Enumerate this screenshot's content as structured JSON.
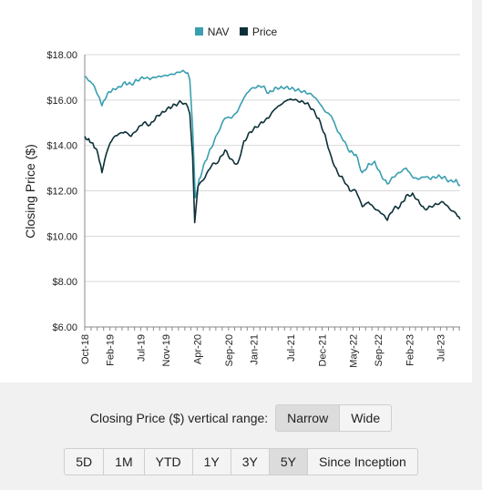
{
  "legend": {
    "nav": {
      "label": "NAV",
      "color": "#3a9fb0"
    },
    "price": {
      "label": "Price",
      "color": "#0d3038"
    }
  },
  "range_control": {
    "label": "Closing Price ($) vertical range:",
    "options": [
      "Narrow",
      "Wide"
    ],
    "selected": "Narrow"
  },
  "period_buttons": {
    "options": [
      "5D",
      "1M",
      "YTD",
      "1Y",
      "3Y",
      "5Y",
      "Since Inception"
    ],
    "selected": "5Y"
  },
  "chart_data": {
    "type": "line",
    "ylabel": "Closing Price ($)",
    "ylim": [
      6,
      18
    ],
    "yticks": [
      "$6.00",
      "$8.00",
      "$10.00",
      "$12.00",
      "$14.00",
      "$16.00",
      "$18.00"
    ],
    "xticks": [
      "Oct-18",
      "Feb-19",
      "Jul-19",
      "Nov-19",
      "Apr-20",
      "Sep-20",
      "Jan-21",
      "Jul-21",
      "Dec-21",
      "May-22",
      "Sep-22",
      "Feb-23",
      "Jul-23"
    ],
    "grid": true,
    "legend_position": "top",
    "series": [
      {
        "name": "NAV",
        "color": "#3a9fb0",
        "points": [
          [
            "2018-10-01",
            17.05
          ],
          [
            "2018-10-20",
            16.85
          ],
          [
            "2018-11-10",
            16.7
          ],
          [
            "2018-12-05",
            16.2
          ],
          [
            "2018-12-24",
            15.75
          ],
          [
            "2019-01-20",
            16.3
          ],
          [
            "2019-02-15",
            16.5
          ],
          [
            "2019-03-15",
            16.6
          ],
          [
            "2019-04-15",
            16.8
          ],
          [
            "2019-05-15",
            16.7
          ],
          [
            "2019-06-15",
            16.85
          ],
          [
            "2019-07-15",
            16.95
          ],
          [
            "2019-08-15",
            16.9
          ],
          [
            "2019-09-15",
            17.0
          ],
          [
            "2019-10-15",
            17.05
          ],
          [
            "2019-11-15",
            17.1
          ],
          [
            "2019-12-15",
            17.15
          ],
          [
            "2020-01-15",
            17.25
          ],
          [
            "2020-02-15",
            17.2
          ],
          [
            "2020-02-25",
            16.9
          ],
          [
            "2020-03-10",
            14.8
          ],
          [
            "2020-03-23",
            11.7
          ],
          [
            "2020-04-10",
            12.5
          ],
          [
            "2020-05-10",
            13.3
          ],
          [
            "2020-06-10",
            13.9
          ],
          [
            "2020-07-15",
            14.6
          ],
          [
            "2020-08-15",
            15.2
          ],
          [
            "2020-09-15",
            15.2
          ],
          [
            "2020-10-15",
            15.5
          ],
          [
            "2020-11-15",
            16.1
          ],
          [
            "2020-12-15",
            16.45
          ],
          [
            "2021-01-15",
            16.55
          ],
          [
            "2021-02-15",
            16.6
          ],
          [
            "2021-03-15",
            16.3
          ],
          [
            "2021-04-15",
            16.55
          ],
          [
            "2021-05-15",
            16.6
          ],
          [
            "2021-06-15",
            16.6
          ],
          [
            "2021-07-15",
            16.5
          ],
          [
            "2021-08-15",
            16.4
          ],
          [
            "2021-09-15",
            16.3
          ],
          [
            "2021-10-15",
            16.2
          ],
          [
            "2021-11-15",
            15.9
          ],
          [
            "2021-12-15",
            15.5
          ],
          [
            "2022-01-15",
            15.3
          ],
          [
            "2022-02-15",
            14.6
          ],
          [
            "2022-03-15",
            14.2
          ],
          [
            "2022-04-15",
            13.7
          ],
          [
            "2022-05-15",
            13.6
          ],
          [
            "2022-06-15",
            12.8
          ],
          [
            "2022-07-15",
            13.2
          ],
          [
            "2022-08-15",
            13.3
          ],
          [
            "2022-09-15",
            12.7
          ],
          [
            "2022-10-15",
            12.3
          ],
          [
            "2022-11-15",
            12.6
          ],
          [
            "2022-12-15",
            12.8
          ],
          [
            "2023-01-15",
            13.0
          ],
          [
            "2023-02-15",
            12.6
          ],
          [
            "2023-03-15",
            12.5
          ],
          [
            "2023-04-15",
            12.6
          ],
          [
            "2023-05-15",
            12.5
          ],
          [
            "2023-06-15",
            12.6
          ],
          [
            "2023-07-15",
            12.6
          ],
          [
            "2023-08-15",
            12.45
          ],
          [
            "2023-09-15",
            12.5
          ],
          [
            "2023-10-05",
            12.25
          ]
        ]
      },
      {
        "name": "Price",
        "color": "#0d3038",
        "points": [
          [
            "2018-10-01",
            14.4
          ],
          [
            "2018-10-20",
            14.3
          ],
          [
            "2018-11-10",
            14.1
          ],
          [
            "2018-12-05",
            13.6
          ],
          [
            "2018-12-24",
            12.8
          ],
          [
            "2019-01-20",
            13.8
          ],
          [
            "2019-02-15",
            14.3
          ],
          [
            "2019-03-15",
            14.5
          ],
          [
            "2019-04-15",
            14.6
          ],
          [
            "2019-05-15",
            14.4
          ],
          [
            "2019-06-15",
            14.7
          ],
          [
            "2019-07-15",
            15.0
          ],
          [
            "2019-08-15",
            14.9
          ],
          [
            "2019-09-15",
            15.3
          ],
          [
            "2019-10-15",
            15.5
          ],
          [
            "2019-11-15",
            15.7
          ],
          [
            "2019-12-15",
            15.8
          ],
          [
            "2020-01-15",
            15.9
          ],
          [
            "2020-02-15",
            15.7
          ],
          [
            "2020-02-25",
            15.4
          ],
          [
            "2020-03-10",
            13.5
          ],
          [
            "2020-03-20",
            10.6
          ],
          [
            "2020-04-05",
            12.2
          ],
          [
            "2020-05-10",
            12.6
          ],
          [
            "2020-06-10",
            13.1
          ],
          [
            "2020-07-15",
            13.3
          ],
          [
            "2020-08-15",
            13.8
          ],
          [
            "2020-09-15",
            13.4
          ],
          [
            "2020-10-15",
            13.2
          ],
          [
            "2020-11-15",
            14.2
          ],
          [
            "2020-12-15",
            14.6
          ],
          [
            "2021-01-15",
            14.8
          ],
          [
            "2021-02-15",
            15.0
          ],
          [
            "2021-03-15",
            15.2
          ],
          [
            "2021-04-15",
            15.6
          ],
          [
            "2021-05-15",
            15.8
          ],
          [
            "2021-06-15",
            16.0
          ],
          [
            "2021-07-15",
            16.0
          ],
          [
            "2021-08-15",
            15.9
          ],
          [
            "2021-09-15",
            15.85
          ],
          [
            "2021-10-15",
            15.6
          ],
          [
            "2021-11-15",
            15.2
          ],
          [
            "2021-12-15",
            14.5
          ],
          [
            "2022-01-15",
            13.5
          ],
          [
            "2022-02-15",
            12.8
          ],
          [
            "2022-03-15",
            12.5
          ],
          [
            "2022-04-15",
            12.0
          ],
          [
            "2022-05-15",
            12.0
          ],
          [
            "2022-06-15",
            11.3
          ],
          [
            "2022-07-15",
            11.5
          ],
          [
            "2022-08-15",
            11.2
          ],
          [
            "2022-09-15",
            11.0
          ],
          [
            "2022-10-15",
            10.7
          ],
          [
            "2022-11-15",
            11.2
          ],
          [
            "2022-12-15",
            11.3
          ],
          [
            "2023-01-15",
            11.8
          ],
          [
            "2023-02-15",
            11.9
          ],
          [
            "2023-03-15",
            11.6
          ],
          [
            "2023-04-15",
            11.2
          ],
          [
            "2023-05-15",
            11.3
          ],
          [
            "2023-06-15",
            11.4
          ],
          [
            "2023-07-15",
            11.5
          ],
          [
            "2023-08-15",
            11.2
          ],
          [
            "2023-09-15",
            11.0
          ],
          [
            "2023-10-05",
            10.75
          ]
        ]
      }
    ]
  }
}
